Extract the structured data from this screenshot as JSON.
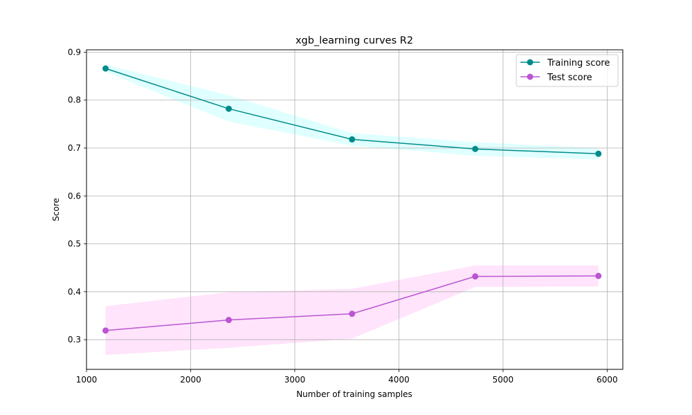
{
  "chart_data": {
    "type": "line",
    "title": "xgb_learning curves R2",
    "xlabel": "Number of training samples",
    "ylabel": "Score",
    "xlim": [
      1000,
      6150
    ],
    "ylim": [
      0.238,
      0.905
    ],
    "x_ticks": [
      1000,
      2000,
      3000,
      4000,
      5000,
      6000
    ],
    "x_tick_labels": [
      "1000",
      "2000",
      "3000",
      "4000",
      "5000",
      "6000"
    ],
    "y_ticks": [
      0.3,
      0.4,
      0.5,
      0.6,
      0.7,
      0.8,
      0.9
    ],
    "y_tick_labels": [
      "0.3",
      "0.4",
      "0.5",
      "0.6",
      "0.7",
      "0.8",
      "0.9"
    ],
    "grid": true,
    "legend_position": "top-right",
    "x": [
      1183,
      2366,
      3550,
      4733,
      5916
    ],
    "series": [
      {
        "name": "Training score",
        "color": "#008b8b",
        "band_color": "#e0ffff",
        "values": [
          0.866,
          0.782,
          0.718,
          0.698,
          0.688
        ],
        "band_lower": [
          0.859,
          0.755,
          0.705,
          0.684,
          0.676
        ],
        "band_upper": [
          0.874,
          0.81,
          0.731,
          0.712,
          0.7
        ]
      },
      {
        "name": "Test score",
        "color": "#ba55d3",
        "band_color": "#ffe4fb",
        "values": [
          0.319,
          0.341,
          0.354,
          0.432,
          0.433
        ],
        "band_lower": [
          0.268,
          0.283,
          0.302,
          0.41,
          0.411
        ],
        "band_upper": [
          0.37,
          0.399,
          0.406,
          0.455,
          0.455
        ]
      }
    ]
  }
}
